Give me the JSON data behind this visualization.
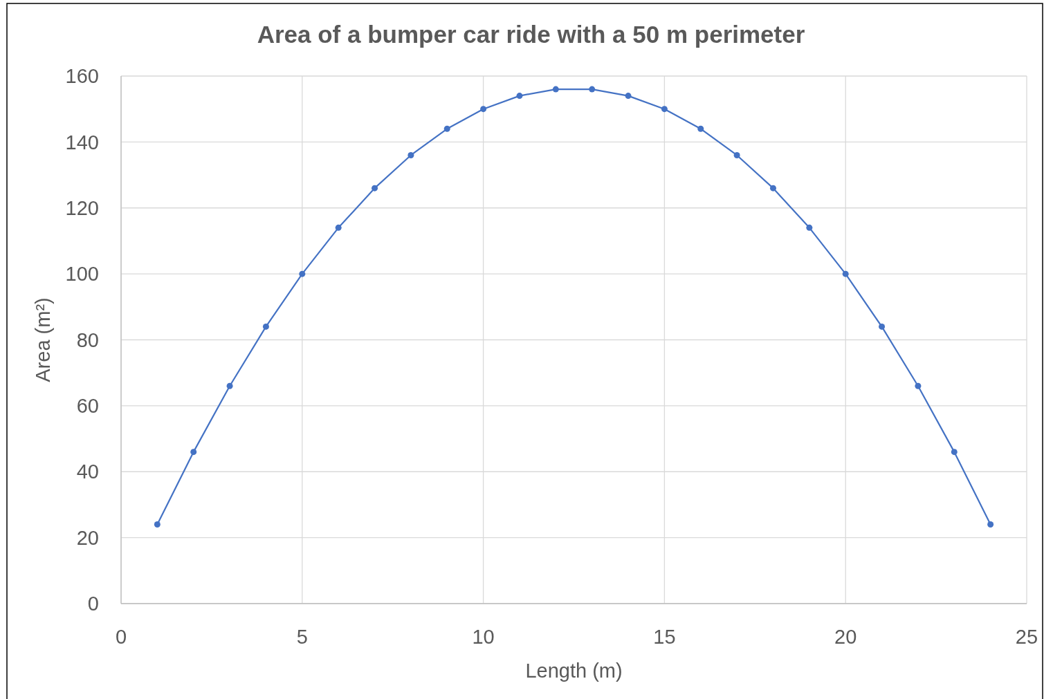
{
  "chart_data": {
    "type": "line",
    "title": "Area of a bumper car ride with a 50 m perimeter",
    "xlabel": "Length (m)",
    "ylabel": "Area (m²)",
    "x": [
      1,
      2,
      3,
      4,
      5,
      6,
      7,
      8,
      9,
      10,
      11,
      12,
      13,
      14,
      15,
      16,
      17,
      18,
      19,
      20,
      21,
      22,
      23,
      24
    ],
    "series": [
      {
        "color": "#4472c4",
        "values": [
          24,
          46,
          66,
          84,
          100,
          114,
          126,
          136,
          144,
          150,
          154,
          156,
          156,
          154,
          150,
          144,
          136,
          126,
          114,
          100,
          84,
          66,
          46,
          24
        ]
      }
    ],
    "xlim": [
      0,
      25
    ],
    "xticks": [
      0,
      5,
      10,
      15,
      20,
      25
    ],
    "ylim": [
      0,
      160
    ],
    "yticks": [
      0,
      20,
      40,
      60,
      80,
      100,
      120,
      140,
      160
    ],
    "grid": true,
    "marker": "circle",
    "line_style": "solid"
  }
}
